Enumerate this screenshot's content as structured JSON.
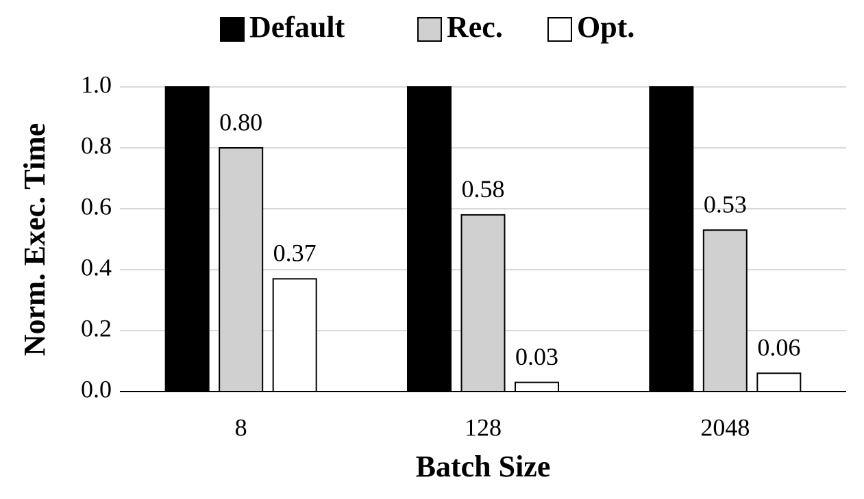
{
  "chart_data": {
    "type": "bar",
    "categories": [
      "8",
      "128",
      "2048"
    ],
    "series": [
      {
        "name": "Default",
        "color": "#000000",
        "values": [
          1.0,
          1.0,
          1.0
        ]
      },
      {
        "name": "Rec.",
        "color": "#d0d0d0",
        "values": [
          0.8,
          0.58,
          0.53
        ],
        "value_labels": [
          "0.80",
          "0.58",
          "0.53"
        ]
      },
      {
        "name": "Opt.",
        "color": "#ffffff",
        "values": [
          0.37,
          0.03,
          0.06
        ],
        "value_labels": [
          "0.37",
          "0.03",
          "0.06"
        ]
      }
    ],
    "y_label": "Norm. Exec. Time",
    "x_label": "Batch Size",
    "ylim": [
      0,
      1.0
    ],
    "yticks": [
      {
        "value": 0,
        "label": "0.0"
      },
      {
        "value": 0.2,
        "label": "0.2"
      },
      {
        "value": 0.4,
        "label": "0.4"
      },
      {
        "value": 0.6,
        "label": "0.6"
      },
      {
        "value": 0.8,
        "label": "0.8"
      },
      {
        "value": 1.0,
        "label": "1.0"
      }
    ],
    "grid": true,
    "legend": "top"
  }
}
